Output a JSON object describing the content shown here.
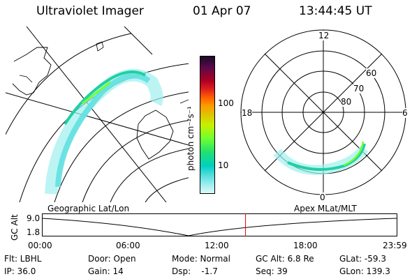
{
  "header": {
    "instrument": "Ultraviolet Imager",
    "date": "01 Apr 07",
    "time": "13:44:45 UT"
  },
  "colorbar": {
    "label": "photon cm⁻²s⁻¹",
    "ticks": [
      "100",
      "10"
    ],
    "colors": [
      "#1a0a2a",
      "#5a0a4a",
      "#b00020",
      "#e02020",
      "#ff6000",
      "#ff9a00",
      "#e0c000",
      "#c8f000",
      "#70ff30",
      "#20e070",
      "#00d0c0",
      "#60e0e0",
      "#a0f0f0",
      "#e0f8f8"
    ]
  },
  "polar": {
    "mlt_labels": {
      "top": "12",
      "right": "6",
      "bottom": "0",
      "left": "18"
    },
    "lat_labels": [
      "60",
      "70",
      "80"
    ]
  },
  "labels": {
    "geographic": "Geographic Lat/Lon",
    "apex": "Apex  MLat/MLT",
    "gc_alt_axis": "GC Alt",
    "alt_max": "9.0",
    "alt_min": "1.8"
  },
  "timeline": {
    "ticks": [
      "00:00",
      "06:00",
      "12:00",
      "18:00",
      "23:59"
    ],
    "current_time_fraction": 0.573
  },
  "footer": {
    "flt": "Flt: LBHL",
    "ip": "IP: 36.0",
    "door": "Door: Open",
    "gain": "Gain: 14",
    "mode": "Mode: Normal",
    "dsp": "Dsp:    -1.7",
    "gcalt": "GC Alt: 6.8 Re",
    "seq": "Seq: 39",
    "glat": "GLat: -59.3",
    "glon": "GLon: 139.3"
  }
}
